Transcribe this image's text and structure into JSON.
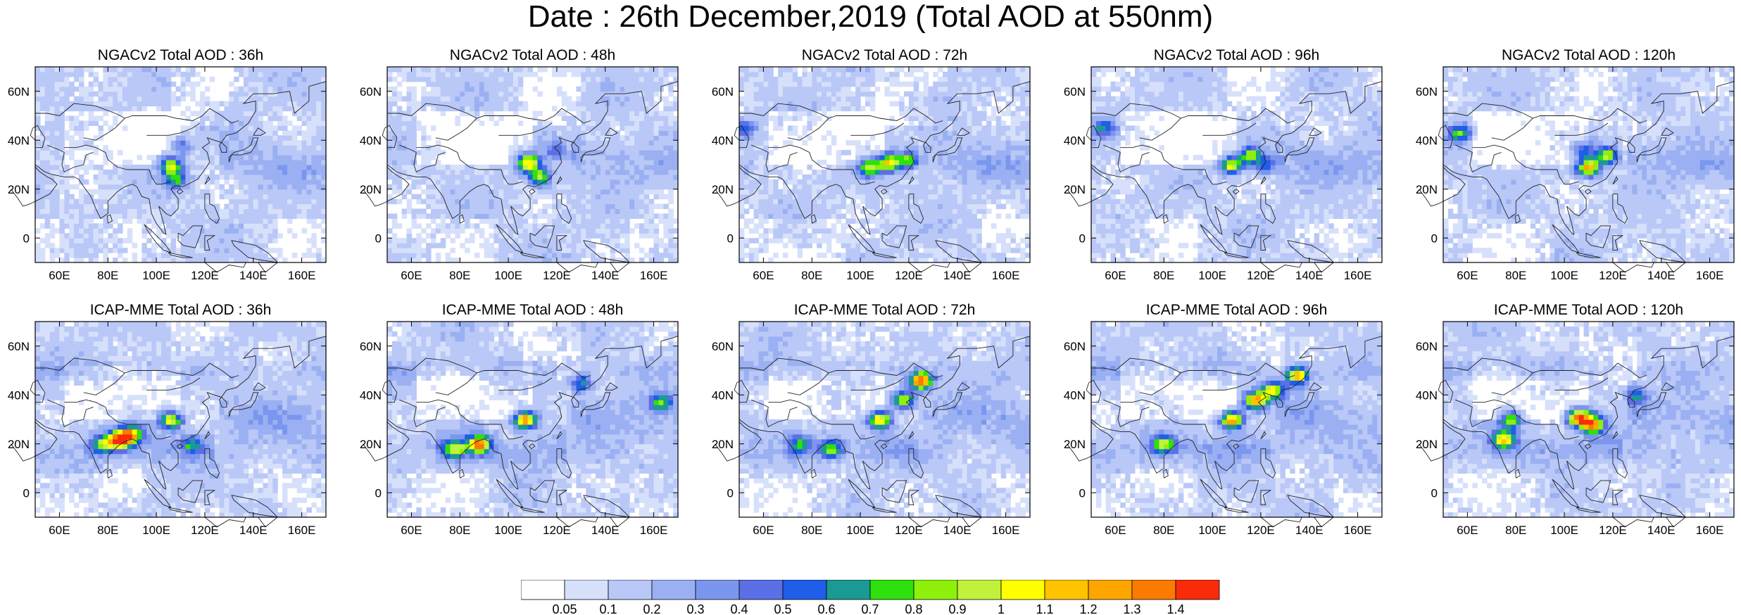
{
  "title": "Date : 26th December,2019 (Total AOD at 550nm)",
  "panels": [
    {
      "title": "NGACv2 Total AOD : 36h",
      "model": "NGACv2",
      "hour": 36,
      "hotspots": [
        {
          "lon": 106,
          "lat": 30,
          "v": 0.9
        },
        {
          "lon": 108,
          "lat": 24,
          "v": 0.6
        },
        {
          "lon": 110,
          "lat": 38,
          "v": 0.35
        }
      ]
    },
    {
      "title": "NGACv2 Total AOD : 48h",
      "model": "NGACv2",
      "hour": 48,
      "hotspots": [
        {
          "lon": 108,
          "lat": 31,
          "v": 1.1
        },
        {
          "lon": 113,
          "lat": 25,
          "v": 0.8
        },
        {
          "lon": 120,
          "lat": 36,
          "v": 0.35
        }
      ]
    },
    {
      "title": "NGACv2 Total AOD : 72h",
      "model": "NGACv2",
      "hour": 72,
      "hotspots": [
        {
          "lon": 112,
          "lat": 31,
          "v": 0.95
        },
        {
          "lon": 104,
          "lat": 29,
          "v": 0.8
        },
        {
          "lon": 120,
          "lat": 32,
          "v": 0.7
        },
        {
          "lon": 52,
          "lat": 45,
          "v": 0.5
        }
      ]
    },
    {
      "title": "NGACv2 Total AOD : 96h",
      "model": "NGACv2",
      "hour": 96,
      "hotspots": [
        {
          "lon": 108,
          "lat": 30,
          "v": 1.0
        },
        {
          "lon": 116,
          "lat": 34,
          "v": 0.75
        },
        {
          "lon": 55,
          "lat": 45,
          "v": 0.5
        },
        {
          "lon": 122,
          "lat": 30,
          "v": 0.5
        }
      ]
    },
    {
      "title": "NGACv2 Total AOD : 120h",
      "model": "NGACv2",
      "hour": 120,
      "hotspots": [
        {
          "lon": 110,
          "lat": 29,
          "v": 1.1
        },
        {
          "lon": 118,
          "lat": 34,
          "v": 0.85
        },
        {
          "lon": 57,
          "lat": 43,
          "v": 0.7
        },
        {
          "lon": 108,
          "lat": 36,
          "v": 0.45
        }
      ]
    },
    {
      "title": "ICAP-MME Total AOD : 36h",
      "model": "ICAP-MME",
      "hour": 36,
      "hotspots": [
        {
          "lon": 85,
          "lat": 22,
          "v": 1.4
        },
        {
          "lon": 90,
          "lat": 24,
          "v": 0.9
        },
        {
          "lon": 106,
          "lat": 30,
          "v": 1.0
        },
        {
          "lon": 78,
          "lat": 20,
          "v": 0.7
        },
        {
          "lon": 115,
          "lat": 20,
          "v": 0.5
        }
      ]
    },
    {
      "title": "ICAP-MME Total AOD : 48h",
      "model": "ICAP-MME",
      "hour": 48,
      "hotspots": [
        {
          "lon": 107,
          "lat": 30,
          "v": 1.3
        },
        {
          "lon": 88,
          "lat": 20,
          "v": 1.2
        },
        {
          "lon": 78,
          "lat": 18,
          "v": 0.8
        },
        {
          "lon": 163,
          "lat": 37,
          "v": 0.7
        },
        {
          "lon": 130,
          "lat": 45,
          "v": 0.55
        }
      ]
    },
    {
      "title": "ICAP-MME Total AOD : 72h",
      "model": "ICAP-MME",
      "hour": 72,
      "hotspots": [
        {
          "lon": 125,
          "lat": 46,
          "v": 1.4
        },
        {
          "lon": 108,
          "lat": 30,
          "v": 1.1
        },
        {
          "lon": 118,
          "lat": 38,
          "v": 0.9
        },
        {
          "lon": 88,
          "lat": 18,
          "v": 0.7
        },
        {
          "lon": 75,
          "lat": 20,
          "v": 0.5
        }
      ]
    },
    {
      "title": "ICAP-MME Total AOD : 96h",
      "model": "ICAP-MME",
      "hour": 96,
      "hotspots": [
        {
          "lon": 108,
          "lat": 30,
          "v": 1.3
        },
        {
          "lon": 118,
          "lat": 38,
          "v": 1.2
        },
        {
          "lon": 135,
          "lat": 48,
          "v": 1.1
        },
        {
          "lon": 125,
          "lat": 42,
          "v": 0.95
        },
        {
          "lon": 80,
          "lat": 20,
          "v": 0.8
        }
      ]
    },
    {
      "title": "ICAP-MME Total AOD : 120h",
      "model": "ICAP-MME",
      "hour": 120,
      "hotspots": [
        {
          "lon": 106,
          "lat": 31,
          "v": 1.4
        },
        {
          "lon": 75,
          "lat": 22,
          "v": 0.95
        },
        {
          "lon": 78,
          "lat": 30,
          "v": 0.8
        },
        {
          "lon": 112,
          "lat": 28,
          "v": 1.2
        },
        {
          "lon": 130,
          "lat": 40,
          "v": 0.5
        }
      ]
    }
  ],
  "axes": {
    "lon_range": [
      50,
      170
    ],
    "lat_range": [
      -10,
      70
    ],
    "lon_ticks": [
      {
        "v": 60,
        "label": "60E"
      },
      {
        "v": 80,
        "label": "80E"
      },
      {
        "v": 100,
        "label": "100E"
      },
      {
        "v": 120,
        "label": "120E"
      },
      {
        "v": 140,
        "label": "140E"
      },
      {
        "v": 160,
        "label": "160E"
      }
    ],
    "lat_ticks": [
      {
        "v": 60,
        "label": "60N"
      },
      {
        "v": 40,
        "label": "40N"
      },
      {
        "v": 20,
        "label": "20N"
      },
      {
        "v": 0,
        "label": "0"
      }
    ]
  },
  "colorbar": {
    "labels": [
      "0.05",
      "0.1",
      "0.2",
      "0.3",
      "0.4",
      "0.5",
      "0.6",
      "0.7",
      "0.8",
      "0.9",
      "1",
      "1.1",
      "1.2",
      "1.3",
      "1.4"
    ],
    "colors": [
      "#ffffff",
      "#d7e0fb",
      "#b9c8f7",
      "#9ab0f2",
      "#7b96ee",
      "#5b6fe6",
      "#1f5ee8",
      "#1a9a93",
      "#2ee00c",
      "#8ef00b",
      "#c0f23c",
      "#ffff00",
      "#ffc300",
      "#ffa500",
      "#fb7a00",
      "#f82c0b"
    ]
  }
}
